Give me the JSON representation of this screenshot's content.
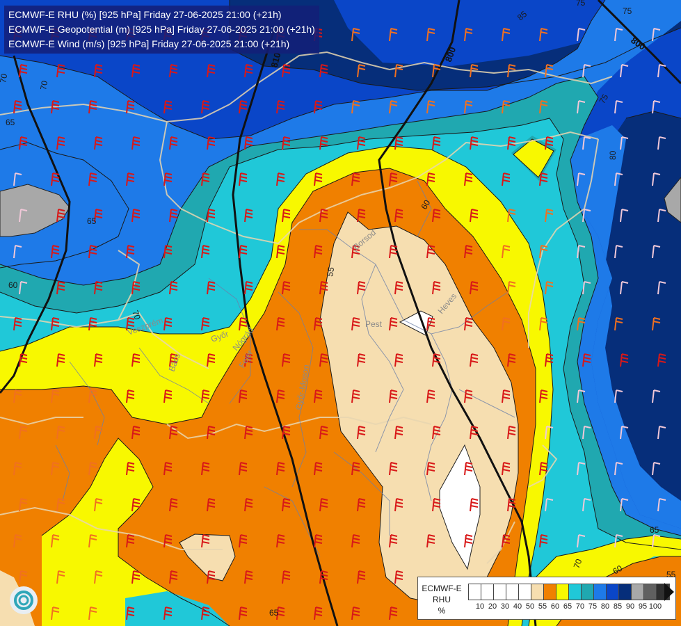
{
  "header": {
    "line1": "ECMWF-E RHU (%) [925 hPa] Friday 27-06-2025 21:00 (+21h)",
    "line2": "ECMWF-E Geopotential (m) [925 hPa] Friday 27-06-2025 21:00 (+21h)",
    "line3": "ECMWF-E Wind (m/s) [925 hPa] Friday 27-06-2025 21:00 (+21h)"
  },
  "legend": {
    "title_line1": "ECMWF-E",
    "title_line2": "RHU",
    "title_line3": "%",
    "ticks": [
      "10",
      "20",
      "30",
      "40",
      "50",
      "55",
      "60",
      "65",
      "70",
      "75",
      "80",
      "85",
      "90",
      "95",
      "100"
    ],
    "colors": [
      "#ffffff",
      "#ffffff",
      "#ffffff",
      "#ffffff",
      "#ffffff",
      "#f6deb0",
      "#f08000",
      "#f8f800",
      "#20c8d8",
      "#20a8b0",
      "#1e7ae8",
      "#0a46c8",
      "#062e7a",
      "#a8a8a8",
      "#606060",
      "#303030"
    ]
  },
  "map": {
    "contour_labels": {
      "rhu": [
        "70",
        "65",
        "60",
        "70",
        "55",
        "60",
        "85",
        "75",
        "75",
        "80",
        "70",
        "65",
        "60",
        "55",
        "65",
        "65",
        "70",
        "75"
      ],
      "geopotential": [
        "800",
        "810",
        "800"
      ]
    },
    "place_labels": [
      "Pest",
      "Borsod",
      "Heves",
      "Győr",
      "Fejér",
      "Veszprém",
      "Bács",
      "Győr-Moson",
      "Nógrád"
    ]
  },
  "colors": {
    "white": "#ffffff",
    "beige": "#f6deb0",
    "orange": "#f08000",
    "yellow": "#f8f800",
    "cyan": "#20c8d8",
    "teal": "#20a8b0",
    "blue": "#1e7ae8",
    "darkblue": "#0a46c8",
    "navy": "#062e7a",
    "grey": "#a8a8a8"
  }
}
